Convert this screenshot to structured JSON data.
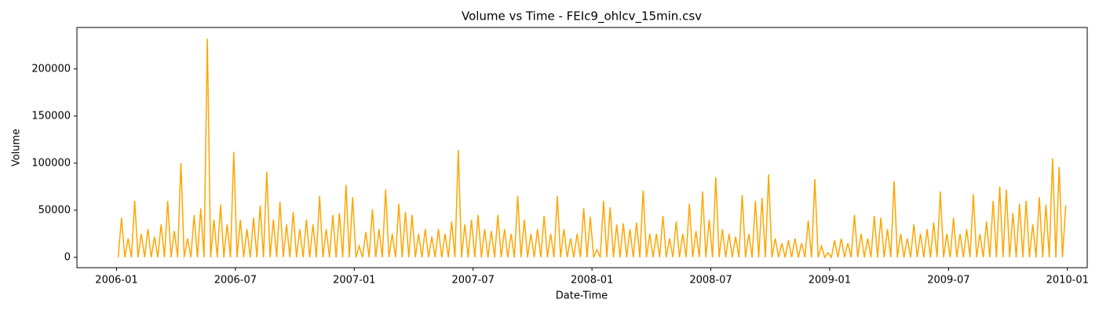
{
  "chart_data": {
    "type": "line",
    "title": "Volume vs Time - FEIc9_ohlcv_15min.csv",
    "x_label": "Date-Time",
    "y_label": "Volume",
    "x": [
      "2006-01",
      "2006-01",
      "2006-01",
      "2006-01",
      "2006-01",
      "2006-01",
      "2006-02",
      "2006-02",
      "2006-02",
      "2006-02",
      "2006-02",
      "2006-02",
      "2006-03",
      "2006-03",
      "2006-03",
      "2006-03",
      "2006-03",
      "2006-03",
      "2006-04",
      "2006-04",
      "2006-04",
      "2006-04",
      "2006-04",
      "2006-04",
      "2006-05",
      "2006-05",
      "2006-05",
      "2006-05",
      "2006-05",
      "2006-05",
      "2006-06",
      "2006-06",
      "2006-06",
      "2006-06",
      "2006-06",
      "2006-06",
      "2006-07",
      "2006-07",
      "2006-07",
      "2006-07",
      "2006-07",
      "2006-07",
      "2006-08",
      "2006-08",
      "2006-08",
      "2006-08",
      "2006-08",
      "2006-08",
      "2006-09",
      "2006-09",
      "2006-09",
      "2006-09",
      "2006-09",
      "2006-09",
      "2006-10",
      "2006-10",
      "2006-10",
      "2006-10",
      "2006-10",
      "2006-10",
      "2006-11",
      "2006-11",
      "2006-11",
      "2006-11",
      "2006-11",
      "2006-11",
      "2006-12",
      "2006-12",
      "2006-12",
      "2006-12",
      "2006-12",
      "2006-12",
      "2007-01",
      "2007-01",
      "2007-01",
      "2007-01",
      "2007-01",
      "2007-01",
      "2007-02",
      "2007-02",
      "2007-02",
      "2007-02",
      "2007-02",
      "2007-02",
      "2007-03",
      "2007-03",
      "2007-03",
      "2007-03",
      "2007-03",
      "2007-03",
      "2007-04",
      "2007-04",
      "2007-04",
      "2007-04",
      "2007-04",
      "2007-04",
      "2007-05",
      "2007-05",
      "2007-05",
      "2007-05",
      "2007-05",
      "2007-05",
      "2007-06",
      "2007-06",
      "2007-06",
      "2007-06",
      "2007-06",
      "2007-06",
      "2007-07",
      "2007-07",
      "2007-07",
      "2007-07",
      "2007-07",
      "2007-07",
      "2007-08",
      "2007-08",
      "2007-08",
      "2007-08",
      "2007-08",
      "2007-08",
      "2007-09",
      "2007-09",
      "2007-09",
      "2007-09",
      "2007-09",
      "2007-09",
      "2007-10",
      "2007-10",
      "2007-10",
      "2007-10",
      "2007-10",
      "2007-10",
      "2007-11",
      "2007-11",
      "2007-11",
      "2007-11",
      "2007-11",
      "2007-11",
      "2007-12",
      "2007-12",
      "2007-12",
      "2007-12",
      "2007-12",
      "2007-12",
      "2008-01",
      "2008-01",
      "2008-01",
      "2008-01",
      "2008-01",
      "2008-01",
      "2008-02",
      "2008-02",
      "2008-02",
      "2008-02",
      "2008-02",
      "2008-02",
      "2008-03",
      "2008-03",
      "2008-03",
      "2008-03",
      "2008-03",
      "2008-03",
      "2008-04",
      "2008-04",
      "2008-04",
      "2008-04",
      "2008-04",
      "2008-04",
      "2008-05",
      "2008-05",
      "2008-05",
      "2008-05",
      "2008-05",
      "2008-05",
      "2008-06",
      "2008-06",
      "2008-06",
      "2008-06",
      "2008-06",
      "2008-06",
      "2008-07",
      "2008-07",
      "2008-07",
      "2008-07",
      "2008-07",
      "2008-07",
      "2008-08",
      "2008-08",
      "2008-08",
      "2008-08",
      "2008-08",
      "2008-08",
      "2008-09",
      "2008-09",
      "2008-09",
      "2008-09",
      "2008-09",
      "2008-09",
      "2008-10",
      "2008-10",
      "2008-10",
      "2008-10",
      "2008-10",
      "2008-10",
      "2008-11",
      "2008-11",
      "2008-11",
      "2008-11",
      "2008-11",
      "2008-11",
      "2008-12",
      "2008-12",
      "2008-12",
      "2008-12",
      "2008-12",
      "2008-12",
      "2009-01",
      "2009-01",
      "2009-01",
      "2009-01",
      "2009-01",
      "2009-01",
      "2009-02",
      "2009-02",
      "2009-02",
      "2009-02",
      "2009-02",
      "2009-02",
      "2009-03",
      "2009-03",
      "2009-03",
      "2009-03",
      "2009-03",
      "2009-03",
      "2009-04",
      "2009-04",
      "2009-04",
      "2009-04",
      "2009-04",
      "2009-04",
      "2009-05",
      "2009-05",
      "2009-05",
      "2009-05",
      "2009-05",
      "2009-05",
      "2009-06",
      "2009-06",
      "2009-06",
      "2009-06",
      "2009-06",
      "2009-06",
      "2009-07",
      "2009-07",
      "2009-07",
      "2009-07",
      "2009-07",
      "2009-07",
      "2009-08",
      "2009-08",
      "2009-08",
      "2009-08",
      "2009-08",
      "2009-08",
      "2009-09",
      "2009-09",
      "2009-09",
      "2009-09",
      "2009-09",
      "2009-09",
      "2009-10",
      "2009-10",
      "2009-10",
      "2009-10",
      "2009-10",
      "2009-10",
      "2009-11",
      "2009-11",
      "2009-11",
      "2009-11",
      "2009-11",
      "2009-11",
      "2009-12",
      "2009-12",
      "2009-12",
      "2009-12",
      "2009-12",
      "2009-12"
    ],
    "series": [
      {
        "name": "Volume",
        "color": "#ffa500",
        "values": [
          0,
          42000,
          0,
          20000,
          0,
          60000,
          0,
          25000,
          0,
          30000,
          0,
          22000,
          0,
          35000,
          0,
          60000,
          0,
          28000,
          0,
          100000,
          0,
          20000,
          0,
          45000,
          0,
          52000,
          0,
          232000,
          0,
          40000,
          0,
          56000,
          0,
          35000,
          0,
          112000,
          0,
          40000,
          0,
          30000,
          0,
          42000,
          0,
          55000,
          0,
          91000,
          0,
          40000,
          0,
          59000,
          0,
          35000,
          0,
          48000,
          0,
          30000,
          0,
          40000,
          0,
          35000,
          0,
          65000,
          0,
          30000,
          0,
          45000,
          0,
          47000,
          0,
          77000,
          0,
          64000,
          0,
          12000,
          0,
          27000,
          0,
          51000,
          0,
          30000,
          0,
          72000,
          0,
          25000,
          0,
          57000,
          0,
          48000,
          0,
          45000,
          0,
          25000,
          0,
          30000,
          0,
          22000,
          0,
          30000,
          0,
          25000,
          0,
          38000,
          0,
          114000,
          0,
          35000,
          0,
          40000,
          0,
          45000,
          0,
          30000,
          0,
          28000,
          0,
          45000,
          0,
          30000,
          0,
          25000,
          0,
          65000,
          0,
          40000,
          0,
          25000,
          0,
          30000,
          0,
          44000,
          0,
          25000,
          0,
          65000,
          0,
          30000,
          0,
          20000,
          0,
          25000,
          0,
          52000,
          0,
          43000,
          0,
          8000,
          0,
          60000,
          0,
          53000,
          0,
          35000,
          0,
          36000,
          0,
          30000,
          0,
          37000,
          0,
          71000,
          0,
          25000,
          0,
          25000,
          0,
          44000,
          0,
          20000,
          0,
          38000,
          0,
          25000,
          0,
          57000,
          0,
          28000,
          0,
          70000,
          0,
          40000,
          0,
          85000,
          0,
          30000,
          0,
          25000,
          0,
          22000,
          0,
          66000,
          0,
          25000,
          0,
          60000,
          0,
          63000,
          0,
          88000,
          0,
          20000,
          0,
          15000,
          0,
          18000,
          0,
          20000,
          0,
          15000,
          0,
          39000,
          0,
          83000,
          0,
          12000,
          0,
          5000,
          0,
          18000,
          0,
          20000,
          0,
          15000,
          0,
          45000,
          0,
          25000,
          0,
          20000,
          0,
          44000,
          0,
          42000,
          0,
          30000,
          0,
          81000,
          0,
          25000,
          0,
          20000,
          0,
          35000,
          0,
          25000,
          0,
          30000,
          0,
          37000,
          0,
          70000,
          0,
          25000,
          0,
          42000,
          0,
          25000,
          0,
          30000,
          0,
          67000,
          0,
          25000,
          0,
          38000,
          0,
          60000,
          0,
          75000,
          0,
          72000,
          0,
          47000,
          0,
          57000,
          0,
          60000,
          0,
          35000,
          0,
          64000,
          0,
          56000,
          0,
          105000,
          0,
          96000,
          0,
          55000
        ]
      }
    ],
    "xlim": [
      "2005-11",
      "2010-02"
    ],
    "xticks": [
      "2006-01",
      "2006-07",
      "2007-01",
      "2007-07",
      "2008-01",
      "2008-07",
      "2009-01",
      "2009-07",
      "2010-01"
    ],
    "ylim": [
      -11000,
      244000
    ],
    "yticks": [
      0,
      50000,
      100000,
      150000,
      200000
    ]
  }
}
